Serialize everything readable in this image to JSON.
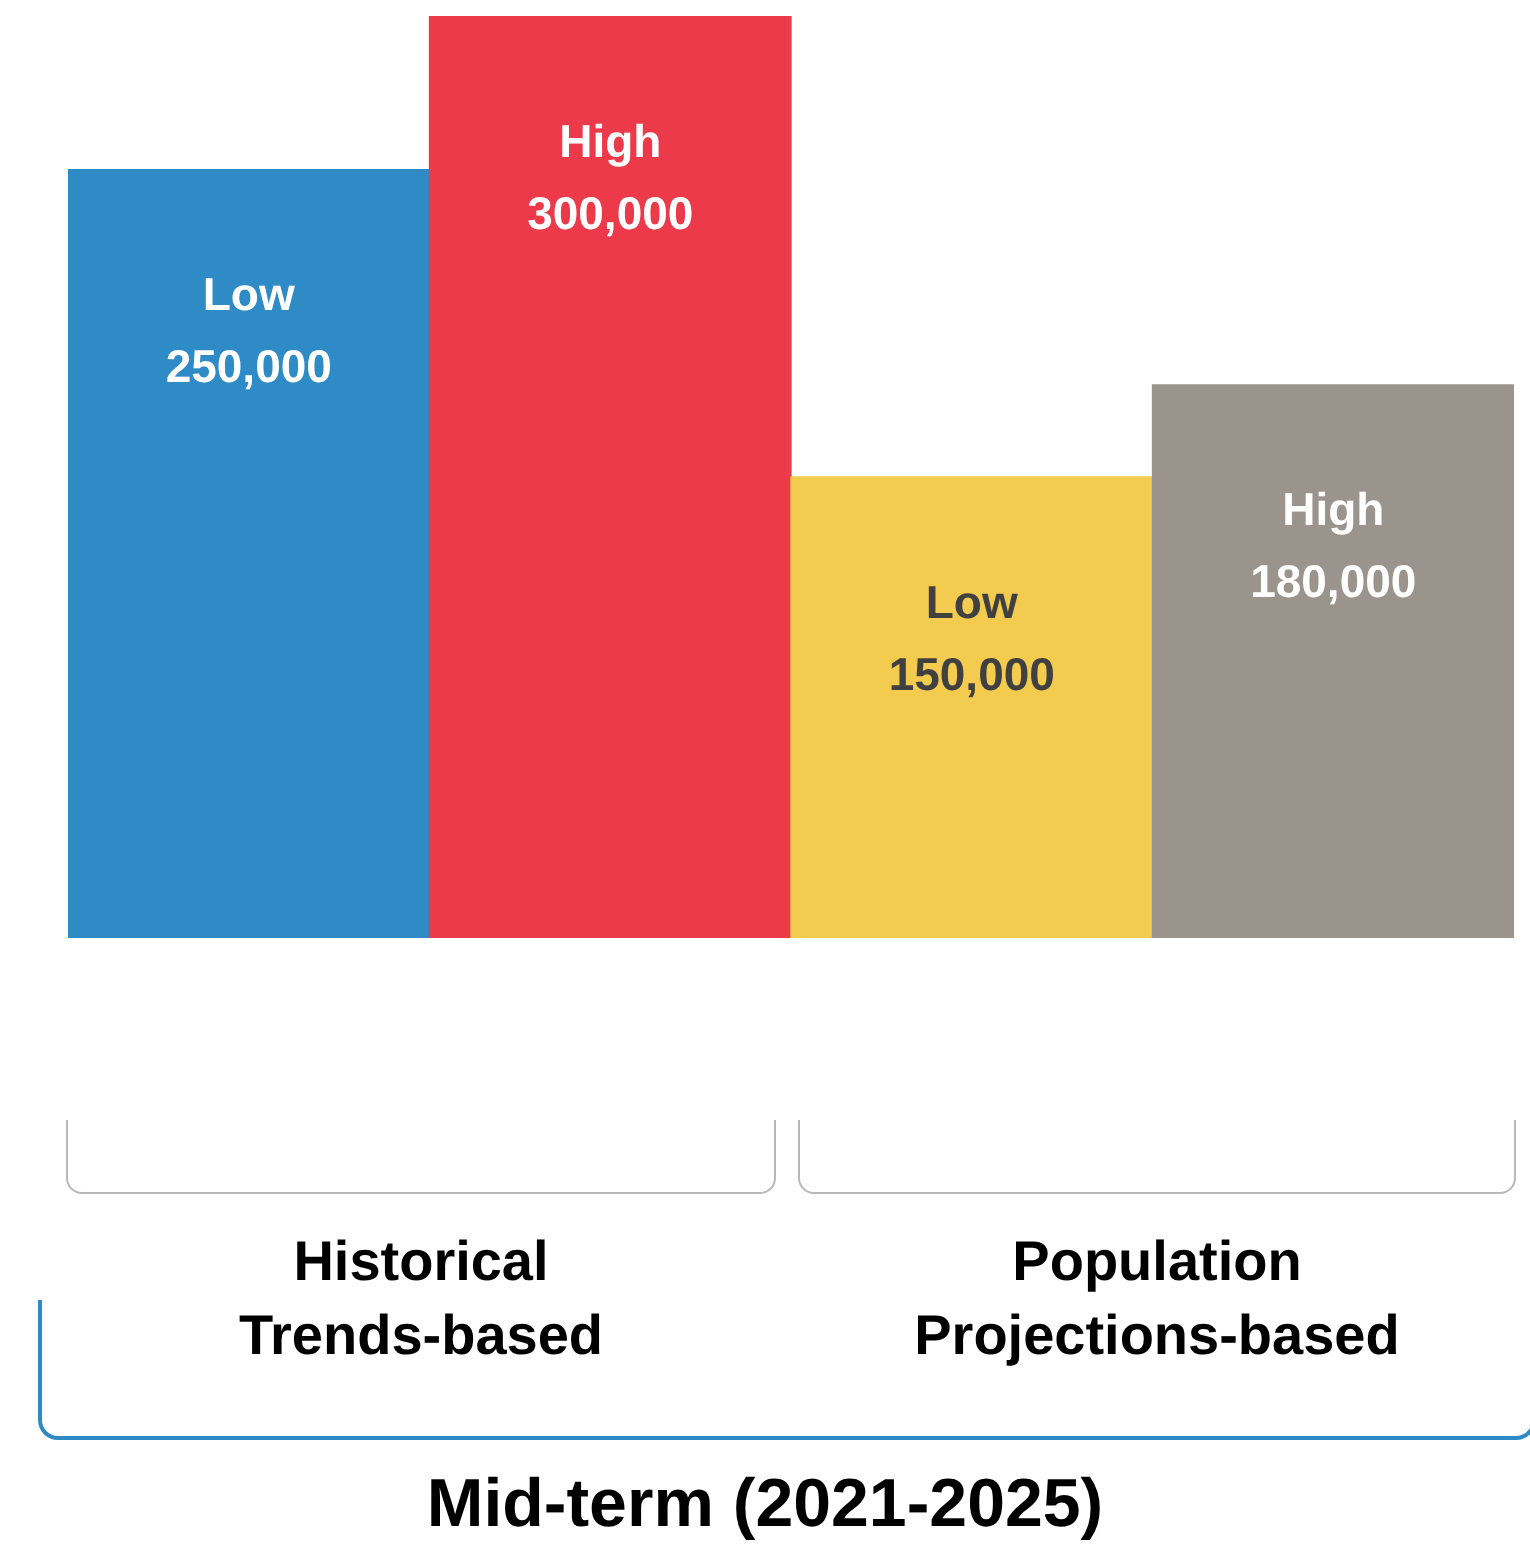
{
  "chart_data": {
    "type": "bar",
    "categories": [
      null,
      null,
      null,
      null
    ],
    "values": [
      250000,
      300000,
      150000,
      180000
    ],
    "colors": [
      "#2e8bc6",
      "#ec3a4b",
      "#f3cb4e",
      "#9a948d"
    ],
    "value_labels": [
      "Low\n250,000",
      "High\n300,000",
      "Low\n150,000",
      "High\n180,000"
    ],
    "ylim": [
      0,
      300000
    ],
    "tick_labels": false,
    "legend": false,
    "annotations": [
      "Historical\nTrends-based",
      "Population\nProjections-based",
      "Mid-term (2021-2025)"
    ]
  }
}
